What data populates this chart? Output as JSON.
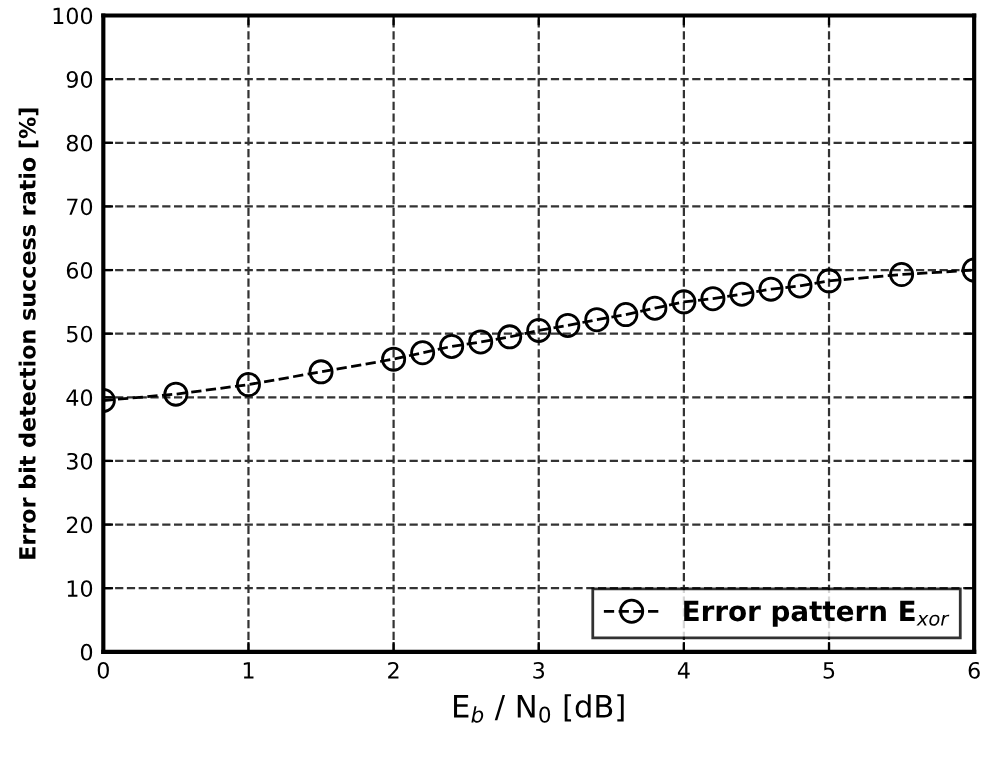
{
  "chart_data": {
    "type": "line",
    "xlabel": "E$_{b}$ / N$_{0}$ [dB]",
    "ylabel": "Error bit detection success ratio [%]",
    "x": [
      0,
      0.5,
      1,
      1.5,
      2,
      2.2,
      2.4,
      2.6,
      2.8,
      3,
      3.2,
      3.4,
      3.6,
      3.8,
      4,
      4.2,
      4.4,
      4.6,
      4.8,
      5,
      5.5,
      6
    ],
    "series": [
      {
        "name": "Error pattern E$_{xor}$",
        "color": "#000000",
        "values": [
          39.5,
          40.5,
          42,
          44,
          46,
          47,
          48,
          48.7,
          49.5,
          50.5,
          51.3,
          52.2,
          53,
          54,
          55,
          55.5,
          56.2,
          57,
          57.5,
          58.3,
          59.3,
          60
        ]
      }
    ],
    "xlim": [
      0,
      6
    ],
    "ylim": [
      0,
      100
    ],
    "xticks": [
      0,
      1,
      2,
      3,
      4,
      5,
      6
    ],
    "yticks": [
      0,
      10,
      20,
      30,
      40,
      50,
      60,
      70,
      80,
      90,
      100
    ],
    "grid": true,
    "legend": "bottom right",
    "marker": "circle",
    "line_style": "dashed"
  }
}
